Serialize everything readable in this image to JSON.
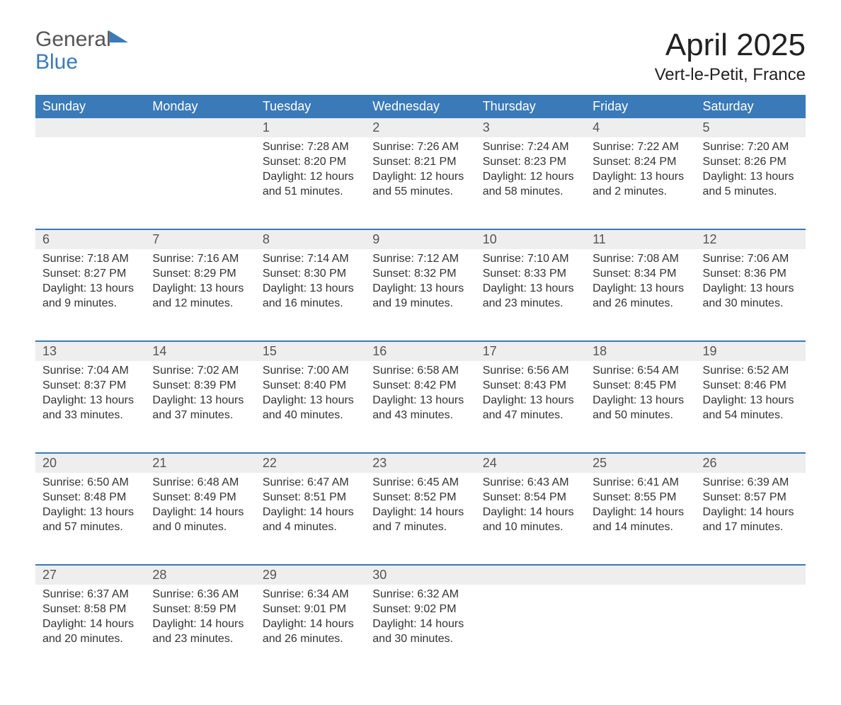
{
  "logo": {
    "line1": "General",
    "line2": "Blue"
  },
  "title": {
    "month": "April 2025",
    "location": "Vert-le-Petit, France"
  },
  "colors": {
    "header_bg": "#3a7ab8",
    "header_fg": "#ffffff",
    "daynum_bg": "#eeeeee",
    "row_border": "#3a7ab8",
    "text": "#333333",
    "page_bg": "#ffffff"
  },
  "typography": {
    "month_fontsize": 44,
    "location_fontsize": 24,
    "header_fontsize": 18,
    "daynum_fontsize": 18,
    "body_fontsize": 16,
    "logo_fontsize": 30
  },
  "layout": {
    "columns": 7,
    "rows": 5
  },
  "weekday_labels": [
    "Sunday",
    "Monday",
    "Tuesday",
    "Wednesday",
    "Thursday",
    "Friday",
    "Saturday"
  ],
  "weeks": [
    [
      null,
      null,
      {
        "n": "1",
        "sr": "Sunrise: 7:28 AM",
        "ss": "Sunset: 8:20 PM",
        "d1": "Daylight: 12 hours",
        "d2": "and 51 minutes."
      },
      {
        "n": "2",
        "sr": "Sunrise: 7:26 AM",
        "ss": "Sunset: 8:21 PM",
        "d1": "Daylight: 12 hours",
        "d2": "and 55 minutes."
      },
      {
        "n": "3",
        "sr": "Sunrise: 7:24 AM",
        "ss": "Sunset: 8:23 PM",
        "d1": "Daylight: 12 hours",
        "d2": "and 58 minutes."
      },
      {
        "n": "4",
        "sr": "Sunrise: 7:22 AM",
        "ss": "Sunset: 8:24 PM",
        "d1": "Daylight: 13 hours",
        "d2": "and 2 minutes."
      },
      {
        "n": "5",
        "sr": "Sunrise: 7:20 AM",
        "ss": "Sunset: 8:26 PM",
        "d1": "Daylight: 13 hours",
        "d2": "and 5 minutes."
      }
    ],
    [
      {
        "n": "6",
        "sr": "Sunrise: 7:18 AM",
        "ss": "Sunset: 8:27 PM",
        "d1": "Daylight: 13 hours",
        "d2": "and 9 minutes."
      },
      {
        "n": "7",
        "sr": "Sunrise: 7:16 AM",
        "ss": "Sunset: 8:29 PM",
        "d1": "Daylight: 13 hours",
        "d2": "and 12 minutes."
      },
      {
        "n": "8",
        "sr": "Sunrise: 7:14 AM",
        "ss": "Sunset: 8:30 PM",
        "d1": "Daylight: 13 hours",
        "d2": "and 16 minutes."
      },
      {
        "n": "9",
        "sr": "Sunrise: 7:12 AM",
        "ss": "Sunset: 8:32 PM",
        "d1": "Daylight: 13 hours",
        "d2": "and 19 minutes."
      },
      {
        "n": "10",
        "sr": "Sunrise: 7:10 AM",
        "ss": "Sunset: 8:33 PM",
        "d1": "Daylight: 13 hours",
        "d2": "and 23 minutes."
      },
      {
        "n": "11",
        "sr": "Sunrise: 7:08 AM",
        "ss": "Sunset: 8:34 PM",
        "d1": "Daylight: 13 hours",
        "d2": "and 26 minutes."
      },
      {
        "n": "12",
        "sr": "Sunrise: 7:06 AM",
        "ss": "Sunset: 8:36 PM",
        "d1": "Daylight: 13 hours",
        "d2": "and 30 minutes."
      }
    ],
    [
      {
        "n": "13",
        "sr": "Sunrise: 7:04 AM",
        "ss": "Sunset: 8:37 PM",
        "d1": "Daylight: 13 hours",
        "d2": "and 33 minutes."
      },
      {
        "n": "14",
        "sr": "Sunrise: 7:02 AM",
        "ss": "Sunset: 8:39 PM",
        "d1": "Daylight: 13 hours",
        "d2": "and 37 minutes."
      },
      {
        "n": "15",
        "sr": "Sunrise: 7:00 AM",
        "ss": "Sunset: 8:40 PM",
        "d1": "Daylight: 13 hours",
        "d2": "and 40 minutes."
      },
      {
        "n": "16",
        "sr": "Sunrise: 6:58 AM",
        "ss": "Sunset: 8:42 PM",
        "d1": "Daylight: 13 hours",
        "d2": "and 43 minutes."
      },
      {
        "n": "17",
        "sr": "Sunrise: 6:56 AM",
        "ss": "Sunset: 8:43 PM",
        "d1": "Daylight: 13 hours",
        "d2": "and 47 minutes."
      },
      {
        "n": "18",
        "sr": "Sunrise: 6:54 AM",
        "ss": "Sunset: 8:45 PM",
        "d1": "Daylight: 13 hours",
        "d2": "and 50 minutes."
      },
      {
        "n": "19",
        "sr": "Sunrise: 6:52 AM",
        "ss": "Sunset: 8:46 PM",
        "d1": "Daylight: 13 hours",
        "d2": "and 54 minutes."
      }
    ],
    [
      {
        "n": "20",
        "sr": "Sunrise: 6:50 AM",
        "ss": "Sunset: 8:48 PM",
        "d1": "Daylight: 13 hours",
        "d2": "and 57 minutes."
      },
      {
        "n": "21",
        "sr": "Sunrise: 6:48 AM",
        "ss": "Sunset: 8:49 PM",
        "d1": "Daylight: 14 hours",
        "d2": "and 0 minutes."
      },
      {
        "n": "22",
        "sr": "Sunrise: 6:47 AM",
        "ss": "Sunset: 8:51 PM",
        "d1": "Daylight: 14 hours",
        "d2": "and 4 minutes."
      },
      {
        "n": "23",
        "sr": "Sunrise: 6:45 AM",
        "ss": "Sunset: 8:52 PM",
        "d1": "Daylight: 14 hours",
        "d2": "and 7 minutes."
      },
      {
        "n": "24",
        "sr": "Sunrise: 6:43 AM",
        "ss": "Sunset: 8:54 PM",
        "d1": "Daylight: 14 hours",
        "d2": "and 10 minutes."
      },
      {
        "n": "25",
        "sr": "Sunrise: 6:41 AM",
        "ss": "Sunset: 8:55 PM",
        "d1": "Daylight: 14 hours",
        "d2": "and 14 minutes."
      },
      {
        "n": "26",
        "sr": "Sunrise: 6:39 AM",
        "ss": "Sunset: 8:57 PM",
        "d1": "Daylight: 14 hours",
        "d2": "and 17 minutes."
      }
    ],
    [
      {
        "n": "27",
        "sr": "Sunrise: 6:37 AM",
        "ss": "Sunset: 8:58 PM",
        "d1": "Daylight: 14 hours",
        "d2": "and 20 minutes."
      },
      {
        "n": "28",
        "sr": "Sunrise: 6:36 AM",
        "ss": "Sunset: 8:59 PM",
        "d1": "Daylight: 14 hours",
        "d2": "and 23 minutes."
      },
      {
        "n": "29",
        "sr": "Sunrise: 6:34 AM",
        "ss": "Sunset: 9:01 PM",
        "d1": "Daylight: 14 hours",
        "d2": "and 26 minutes."
      },
      {
        "n": "30",
        "sr": "Sunrise: 6:32 AM",
        "ss": "Sunset: 9:02 PM",
        "d1": "Daylight: 14 hours",
        "d2": "and 30 minutes."
      },
      null,
      null,
      null
    ]
  ]
}
